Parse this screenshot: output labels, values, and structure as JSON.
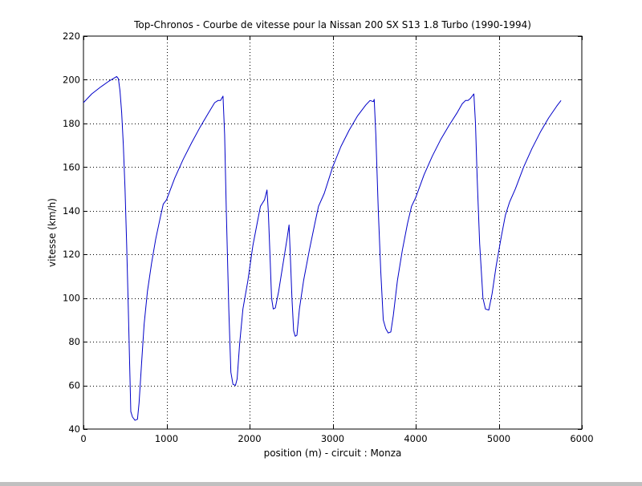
{
  "chart_data": {
    "type": "line",
    "title": "Top-Chronos - Courbe de vitesse pour la Nissan 200 SX S13 1.8 Turbo (1990-1994)",
    "xlabel": "position (m) - circuit : Monza",
    "ylabel": "vitesse (km/h)",
    "xlim": [
      0,
      6000
    ],
    "ylim": [
      40,
      220
    ],
    "xticks": [
      0,
      1000,
      2000,
      3000,
      4000,
      5000,
      6000
    ],
    "yticks": [
      40,
      60,
      80,
      100,
      120,
      140,
      160,
      180,
      200,
      220
    ],
    "grid": true,
    "legend": "none",
    "series": [
      {
        "color": "#0000c8",
        "points": [
          [
            0,
            189.5
          ],
          [
            100,
            193.5
          ],
          [
            200,
            196.5
          ],
          [
            300,
            199.2
          ],
          [
            400,
            201.5
          ],
          [
            420,
            200.5
          ],
          [
            440,
            195
          ],
          [
            460,
            185
          ],
          [
            480,
            170
          ],
          [
            500,
            150
          ],
          [
            520,
            125
          ],
          [
            540,
            95
          ],
          [
            555,
            72
          ],
          [
            570,
            48
          ],
          [
            590,
            45.5
          ],
          [
            620,
            44
          ],
          [
            650,
            44.5
          ],
          [
            670,
            52
          ],
          [
            700,
            70
          ],
          [
            730,
            88
          ],
          [
            770,
            103
          ],
          [
            820,
            116
          ],
          [
            870,
            127
          ],
          [
            920,
            136
          ],
          [
            960,
            143
          ],
          [
            1000,
            145
          ],
          [
            1100,
            155
          ],
          [
            1200,
            163.5
          ],
          [
            1300,
            171
          ],
          [
            1400,
            178
          ],
          [
            1500,
            184.5
          ],
          [
            1580,
            189.5
          ],
          [
            1620,
            190.5
          ],
          [
            1650,
            190.5
          ],
          [
            1680,
            192.5
          ],
          [
            1700,
            175
          ],
          [
            1720,
            140
          ],
          [
            1750,
            95
          ],
          [
            1775,
            66
          ],
          [
            1800,
            60.5
          ],
          [
            1830,
            60
          ],
          [
            1850,
            63
          ],
          [
            1880,
            79
          ],
          [
            1920,
            95
          ],
          [
            1980,
            108
          ],
          [
            2040,
            124
          ],
          [
            2090,
            134
          ],
          [
            2130,
            142
          ],
          [
            2180,
            145
          ],
          [
            2210,
            149.5
          ],
          [
            2225,
            140
          ],
          [
            2245,
            120
          ],
          [
            2265,
            100
          ],
          [
            2285,
            95
          ],
          [
            2310,
            95.5
          ],
          [
            2350,
            103
          ],
          [
            2400,
            115
          ],
          [
            2450,
            127
          ],
          [
            2475,
            133.5
          ],
          [
            2490,
            120
          ],
          [
            2510,
            100
          ],
          [
            2530,
            85
          ],
          [
            2550,
            82.5
          ],
          [
            2570,
            83
          ],
          [
            2600,
            95
          ],
          [
            2650,
            108
          ],
          [
            2720,
            122
          ],
          [
            2790,
            135
          ],
          [
            2830,
            142
          ],
          [
            2900,
            148
          ],
          [
            3000,
            160
          ],
          [
            3100,
            169.5
          ],
          [
            3200,
            177
          ],
          [
            3300,
            183.5
          ],
          [
            3400,
            188.5
          ],
          [
            3450,
            190.5
          ],
          [
            3490,
            190
          ],
          [
            3500,
            191
          ],
          [
            3520,
            175
          ],
          [
            3550,
            140
          ],
          [
            3580,
            112
          ],
          [
            3610,
            90
          ],
          [
            3640,
            86
          ],
          [
            3670,
            84
          ],
          [
            3700,
            84.5
          ],
          [
            3730,
            92
          ],
          [
            3780,
            108
          ],
          [
            3840,
            122
          ],
          [
            3900,
            134
          ],
          [
            3950,
            142
          ],
          [
            4000,
            146
          ],
          [
            4100,
            156.5
          ],
          [
            4200,
            165
          ],
          [
            4300,
            172.5
          ],
          [
            4400,
            179
          ],
          [
            4500,
            185
          ],
          [
            4560,
            189
          ],
          [
            4600,
            190.5
          ],
          [
            4630,
            190.5
          ],
          [
            4660,
            191.5
          ],
          [
            4700,
            193.5
          ],
          [
            4720,
            180
          ],
          [
            4740,
            155
          ],
          [
            4770,
            125
          ],
          [
            4810,
            100
          ],
          [
            4840,
            95
          ],
          [
            4880,
            94.5
          ],
          [
            4920,
            102
          ],
          [
            4970,
            115
          ],
          [
            5030,
            128
          ],
          [
            5080,
            138
          ],
          [
            5130,
            144
          ],
          [
            5200,
            150
          ],
          [
            5300,
            160
          ],
          [
            5400,
            168.5
          ],
          [
            5500,
            176
          ],
          [
            5600,
            182.5
          ],
          [
            5700,
            188
          ],
          [
            5750,
            190.5
          ]
        ]
      }
    ]
  }
}
